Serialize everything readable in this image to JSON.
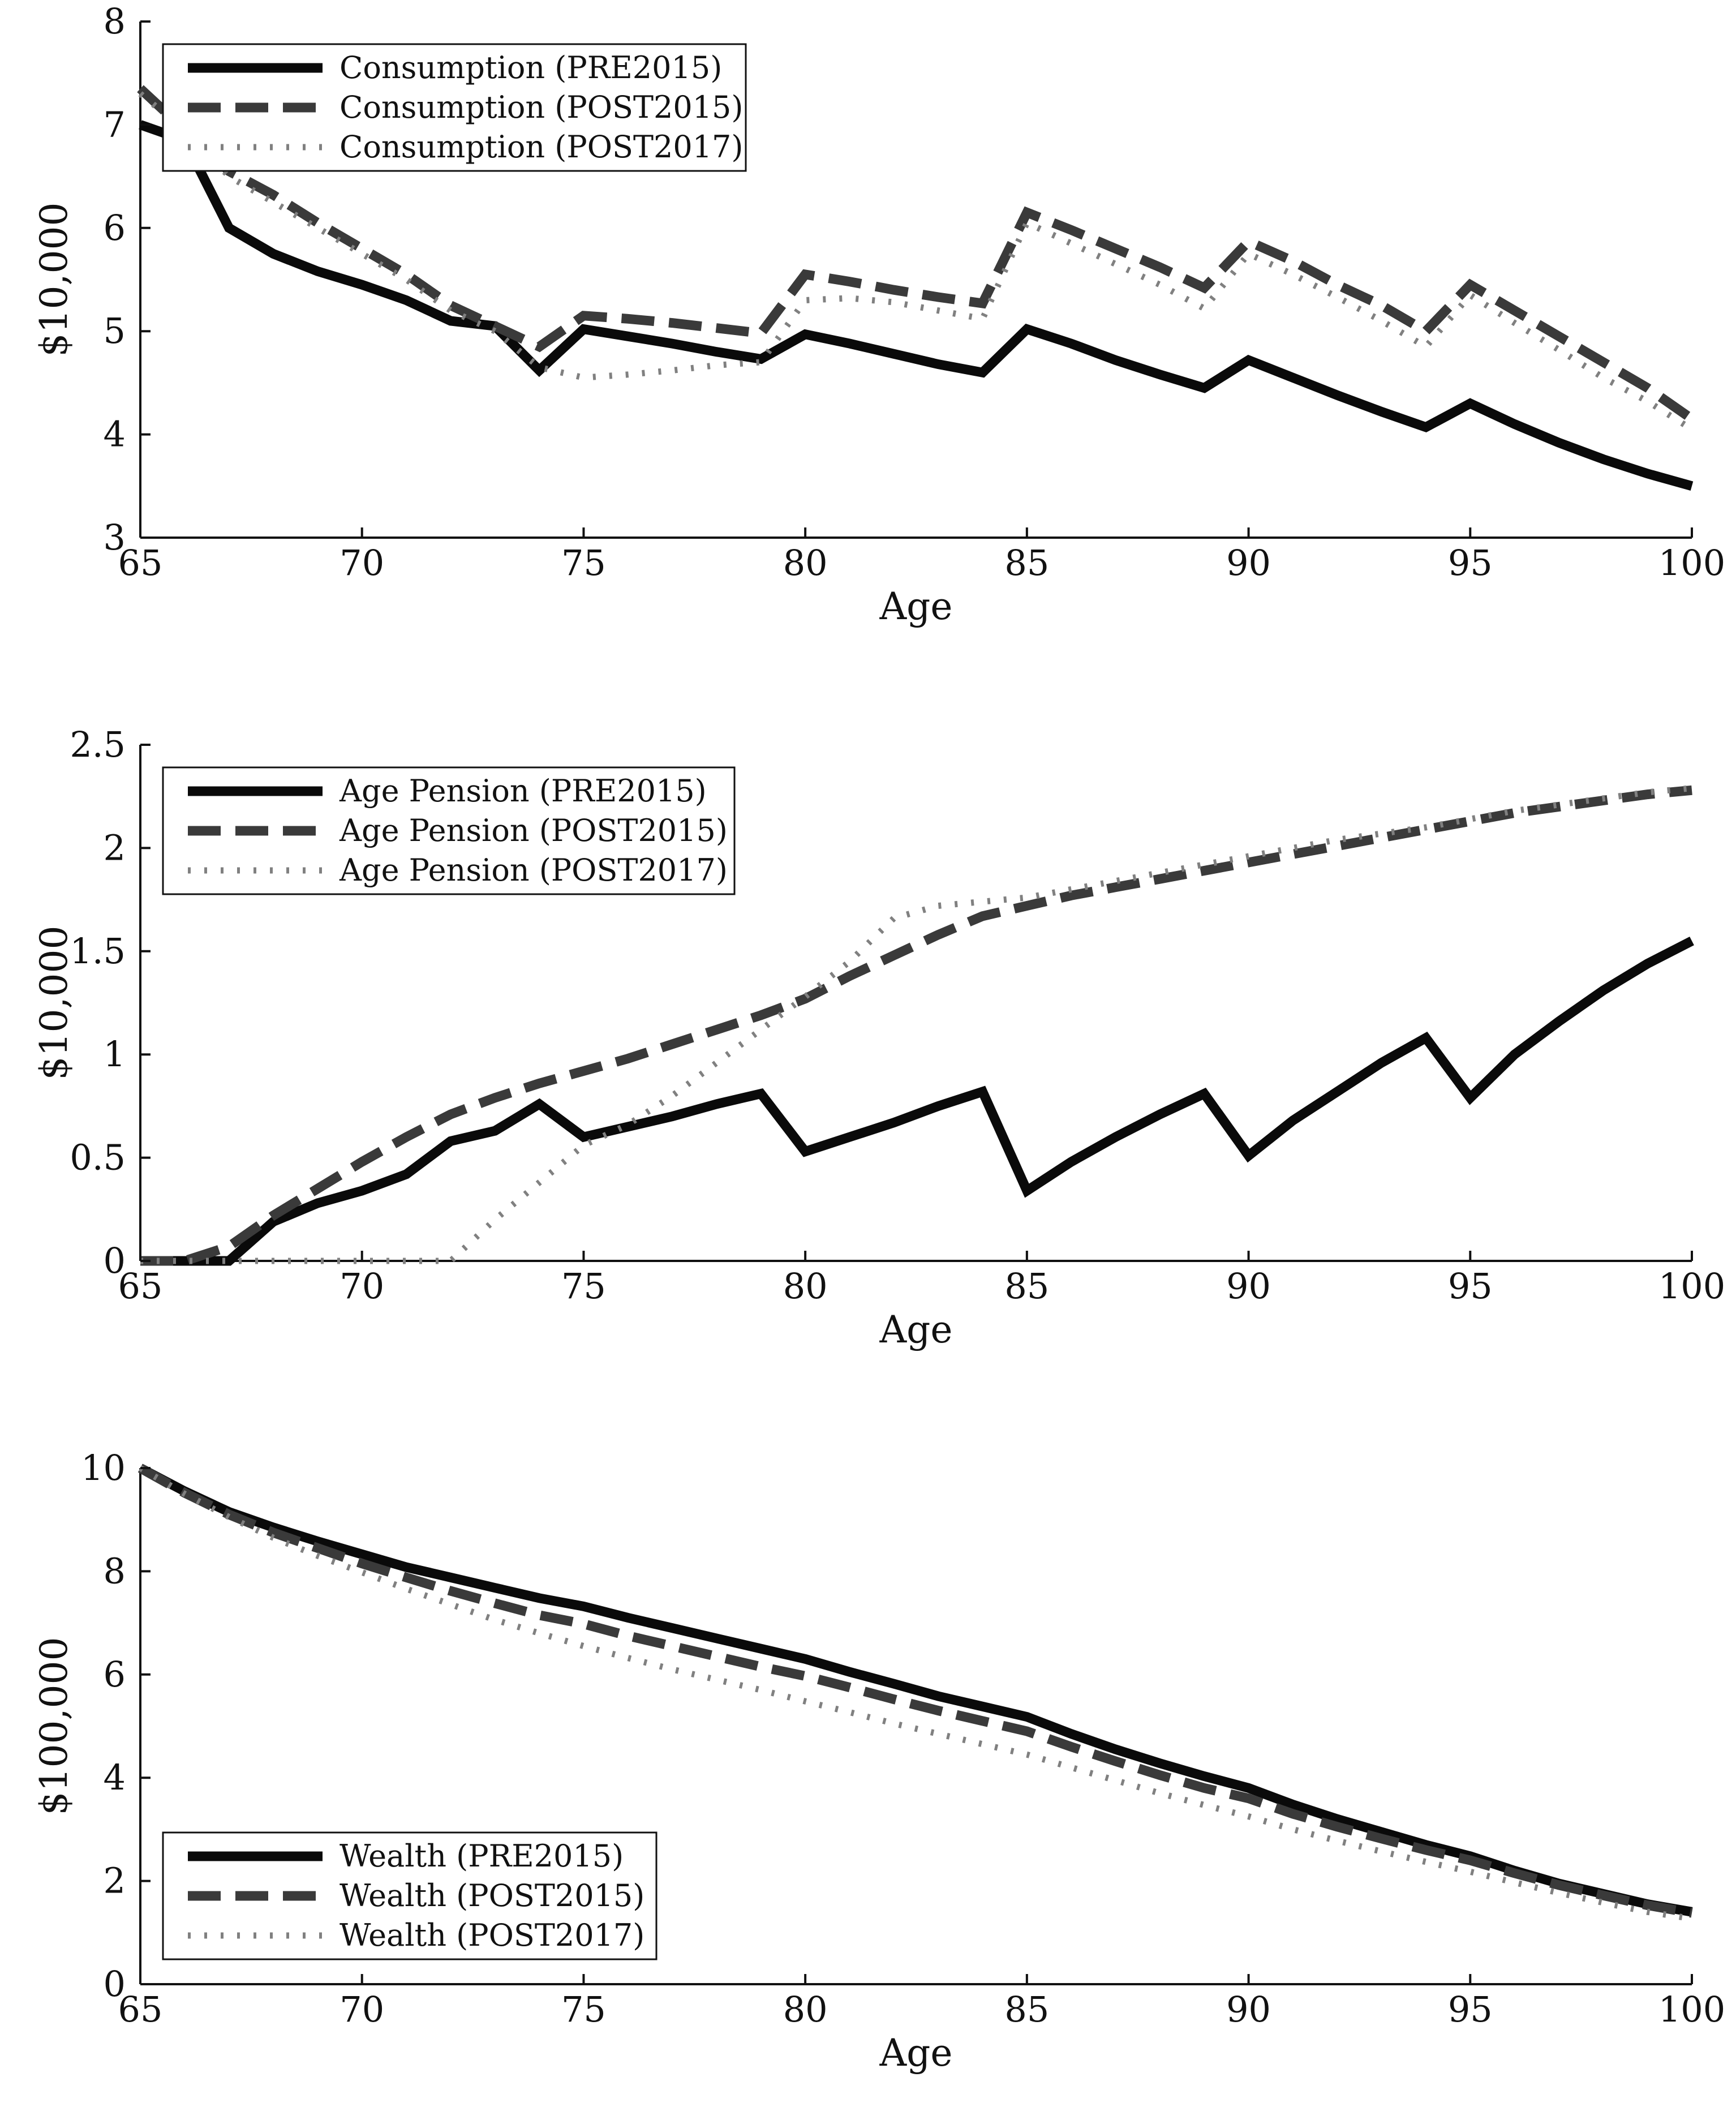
{
  "colors": {
    "pre2015": "#0a0a0a",
    "post2015": "#3a3a3a",
    "post2017": "#808080",
    "axis": "#111111",
    "legend_border": "#111111"
  },
  "chart_data": [
    {
      "type": "line",
      "xlabel": "Age",
      "ylabel": "$10,000",
      "xlim": [
        65,
        100
      ],
      "ylim": [
        3,
        8
      ],
      "xticks": [
        "65",
        "70",
        "75",
        "80",
        "85",
        "90",
        "95",
        "100"
      ],
      "yticks": [
        "3",
        "4",
        "5",
        "6",
        "7",
        "8"
      ],
      "legend_position": "top-left",
      "x": [
        65,
        66,
        67,
        68,
        69,
        70,
        71,
        72,
        73,
        74,
        75,
        76,
        77,
        78,
        79,
        80,
        81,
        82,
        83,
        84,
        85,
        86,
        87,
        88,
        89,
        90,
        91,
        92,
        93,
        94,
        95,
        96,
        97,
        98,
        99,
        100
      ],
      "series": [
        {
          "name": "Consumption (PRE2015)",
          "style": "solid",
          "values": [
            7.0,
            6.85,
            6.0,
            5.75,
            5.58,
            5.45,
            5.3,
            5.1,
            5.05,
            4.62,
            5.02,
            4.95,
            4.88,
            4.8,
            4.73,
            4.97,
            4.88,
            4.78,
            4.68,
            4.6,
            5.02,
            4.88,
            4.72,
            4.58,
            4.45,
            4.72,
            4.55,
            4.38,
            4.22,
            4.07,
            4.3,
            4.1,
            3.92,
            3.76,
            3.62,
            3.5
          ]
        },
        {
          "name": "Consumption (POST2015)",
          "style": "dashed",
          "values": [
            7.35,
            6.95,
            6.55,
            6.32,
            6.05,
            5.8,
            5.55,
            5.25,
            5.05,
            4.85,
            5.15,
            5.12,
            5.08,
            5.03,
            4.98,
            5.55,
            5.48,
            5.4,
            5.33,
            5.27,
            6.15,
            5.98,
            5.8,
            5.62,
            5.42,
            5.87,
            5.68,
            5.45,
            5.25,
            5.0,
            5.45,
            5.2,
            4.95,
            4.7,
            4.45,
            4.15
          ]
        },
        {
          "name": "Consumption (POST2017)",
          "style": "dotted",
          "values": [
            7.3,
            6.95,
            6.5,
            6.25,
            6.0,
            5.75,
            5.5,
            5.2,
            5.0,
            4.65,
            4.55,
            4.58,
            4.62,
            4.67,
            4.7,
            5.3,
            5.32,
            5.28,
            5.2,
            5.12,
            6.05,
            5.85,
            5.65,
            5.45,
            5.22,
            5.75,
            5.55,
            5.33,
            5.1,
            4.85,
            5.35,
            5.08,
            4.82,
            4.55,
            4.32,
            4.05
          ]
        }
      ]
    },
    {
      "type": "line",
      "xlabel": "Age",
      "ylabel": "$10,000",
      "xlim": [
        65,
        100
      ],
      "ylim": [
        0,
        2.5
      ],
      "xticks": [
        "65",
        "70",
        "75",
        "80",
        "85",
        "90",
        "95",
        "100"
      ],
      "yticks": [
        "0",
        "0.5",
        "1",
        "1.5",
        "2",
        "2.5"
      ],
      "legend_position": "top-left",
      "x": [
        65,
        66,
        67,
        68,
        69,
        70,
        71,
        72,
        73,
        74,
        75,
        76,
        77,
        78,
        79,
        80,
        81,
        82,
        83,
        84,
        85,
        86,
        87,
        88,
        89,
        90,
        91,
        92,
        93,
        94,
        95,
        96,
        97,
        98,
        99,
        100
      ],
      "series": [
        {
          "name": "Age Pension (PRE2015)",
          "style": "solid",
          "values": [
            0,
            0,
            0,
            0.19,
            0.28,
            0.34,
            0.42,
            0.58,
            0.63,
            0.76,
            0.6,
            0.65,
            0.7,
            0.76,
            0.81,
            0.53,
            0.6,
            0.67,
            0.75,
            0.82,
            0.34,
            0.48,
            0.6,
            0.71,
            0.81,
            0.51,
            0.68,
            0.82,
            0.96,
            1.08,
            0.79,
            1.0,
            1.16,
            1.31,
            1.44,
            1.55
          ]
        },
        {
          "name": "Age Pension (POST2015)",
          "style": "dashed",
          "values": [
            0,
            0,
            0.07,
            0.22,
            0.35,
            0.48,
            0.6,
            0.71,
            0.79,
            0.86,
            0.92,
            0.98,
            1.05,
            1.12,
            1.19,
            1.27,
            1.38,
            1.48,
            1.58,
            1.67,
            1.72,
            1.77,
            1.81,
            1.85,
            1.89,
            1.93,
            1.97,
            2.01,
            2.05,
            2.09,
            2.13,
            2.17,
            2.2,
            2.23,
            2.26,
            2.28
          ]
        },
        {
          "name": "Age Pension (POST2017)",
          "style": "dotted",
          "values": [
            0,
            0,
            0,
            0,
            0,
            0,
            0,
            0,
            0.2,
            0.38,
            0.56,
            0.66,
            0.8,
            0.96,
            1.12,
            1.28,
            1.45,
            1.66,
            1.72,
            1.74,
            1.76,
            1.8,
            1.84,
            1.88,
            1.92,
            1.96,
            2.0,
            2.04,
            2.07,
            2.1,
            2.14,
            2.18,
            2.21,
            2.24,
            2.27,
            2.29
          ]
        }
      ]
    },
    {
      "type": "line",
      "xlabel": "Age",
      "ylabel": "$100,000",
      "xlim": [
        65,
        100
      ],
      "ylim": [
        0,
        10
      ],
      "xticks": [
        "65",
        "70",
        "75",
        "80",
        "85",
        "90",
        "95",
        "100"
      ],
      "yticks": [
        "0",
        "2",
        "4",
        "6",
        "8",
        "10"
      ],
      "legend_position": "bottom-left",
      "x": [
        65,
        66,
        67,
        68,
        69,
        70,
        71,
        72,
        73,
        74,
        75,
        76,
        77,
        78,
        79,
        80,
        81,
        82,
        83,
        84,
        85,
        86,
        87,
        88,
        89,
        90,
        91,
        92,
        93,
        94,
        95,
        96,
        97,
        98,
        99,
        100
      ],
      "series": [
        {
          "name": "Wealth (PRE2015)",
          "style": "solid",
          "values": [
            10.0,
            9.55,
            9.15,
            8.85,
            8.58,
            8.33,
            8.08,
            7.88,
            7.68,
            7.48,
            7.32,
            7.1,
            6.9,
            6.7,
            6.5,
            6.3,
            6.05,
            5.82,
            5.58,
            5.38,
            5.18,
            4.85,
            4.55,
            4.28,
            4.03,
            3.8,
            3.48,
            3.2,
            2.95,
            2.7,
            2.48,
            2.2,
            1.95,
            1.75,
            1.55,
            1.4
          ]
        },
        {
          "name": "Wealth (POST2015)",
          "style": "dashed",
          "values": [
            10.0,
            9.52,
            9.1,
            8.75,
            8.45,
            8.15,
            7.88,
            7.62,
            7.38,
            7.15,
            6.98,
            6.75,
            6.55,
            6.35,
            6.15,
            5.97,
            5.75,
            5.52,
            5.3,
            5.1,
            4.9,
            4.6,
            4.32,
            4.05,
            3.8,
            3.6,
            3.3,
            3.05,
            2.82,
            2.6,
            2.4,
            2.15,
            1.92,
            1.72,
            1.53,
            1.38
          ]
        },
        {
          "name": "Wealth (POST2017)",
          "style": "dotted",
          "values": [
            10.0,
            9.5,
            9.05,
            8.65,
            8.3,
            7.98,
            7.66,
            7.36,
            7.06,
            6.8,
            6.55,
            6.32,
            6.1,
            5.9,
            5.7,
            5.48,
            5.27,
            5.05,
            4.85,
            4.65,
            4.45,
            4.2,
            3.95,
            3.7,
            3.47,
            3.25,
            3.0,
            2.78,
            2.57,
            2.37,
            2.18,
            1.97,
            1.77,
            1.58,
            1.4,
            1.27
          ]
        }
      ]
    }
  ]
}
